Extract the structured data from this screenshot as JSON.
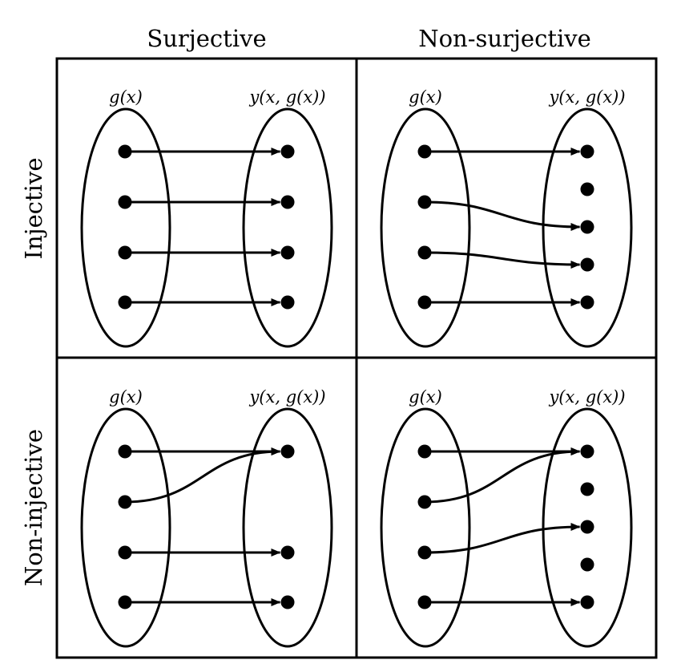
{
  "columns": [
    "Surjective",
    "Non-surjective"
  ],
  "rows": [
    "Injective",
    "Non-injective"
  ],
  "set_labels": {
    "domain": "g(x)",
    "codomain": "y(x, g(x))"
  },
  "colors": {
    "ink": "#000000",
    "background": "#ffffff"
  },
  "panels": [
    {
      "name": "injective-surjective",
      "row": 0,
      "col": 0,
      "domain_count": 4,
      "codomain_count": 4,
      "mappings": [
        [
          0,
          0
        ],
        [
          1,
          1
        ],
        [
          2,
          2
        ],
        [
          3,
          3
        ]
      ]
    },
    {
      "name": "injective-non-surjective",
      "row": 0,
      "col": 1,
      "domain_count": 4,
      "codomain_count": 5,
      "mappings": [
        [
          0,
          0
        ],
        [
          1,
          2
        ],
        [
          2,
          3
        ],
        [
          3,
          4
        ]
      ]
    },
    {
      "name": "non-injective-surjective",
      "row": 1,
      "col": 0,
      "domain_count": 4,
      "codomain_count": 3,
      "mappings": [
        [
          0,
          0
        ],
        [
          1,
          0
        ],
        [
          2,
          1
        ],
        [
          3,
          2
        ]
      ]
    },
    {
      "name": "non-injective-non-surjective",
      "row": 1,
      "col": 1,
      "domain_count": 4,
      "codomain_count": 5,
      "mappings": [
        [
          0,
          0
        ],
        [
          1,
          0
        ],
        [
          2,
          2
        ],
        [
          3,
          4
        ]
      ]
    }
  ]
}
